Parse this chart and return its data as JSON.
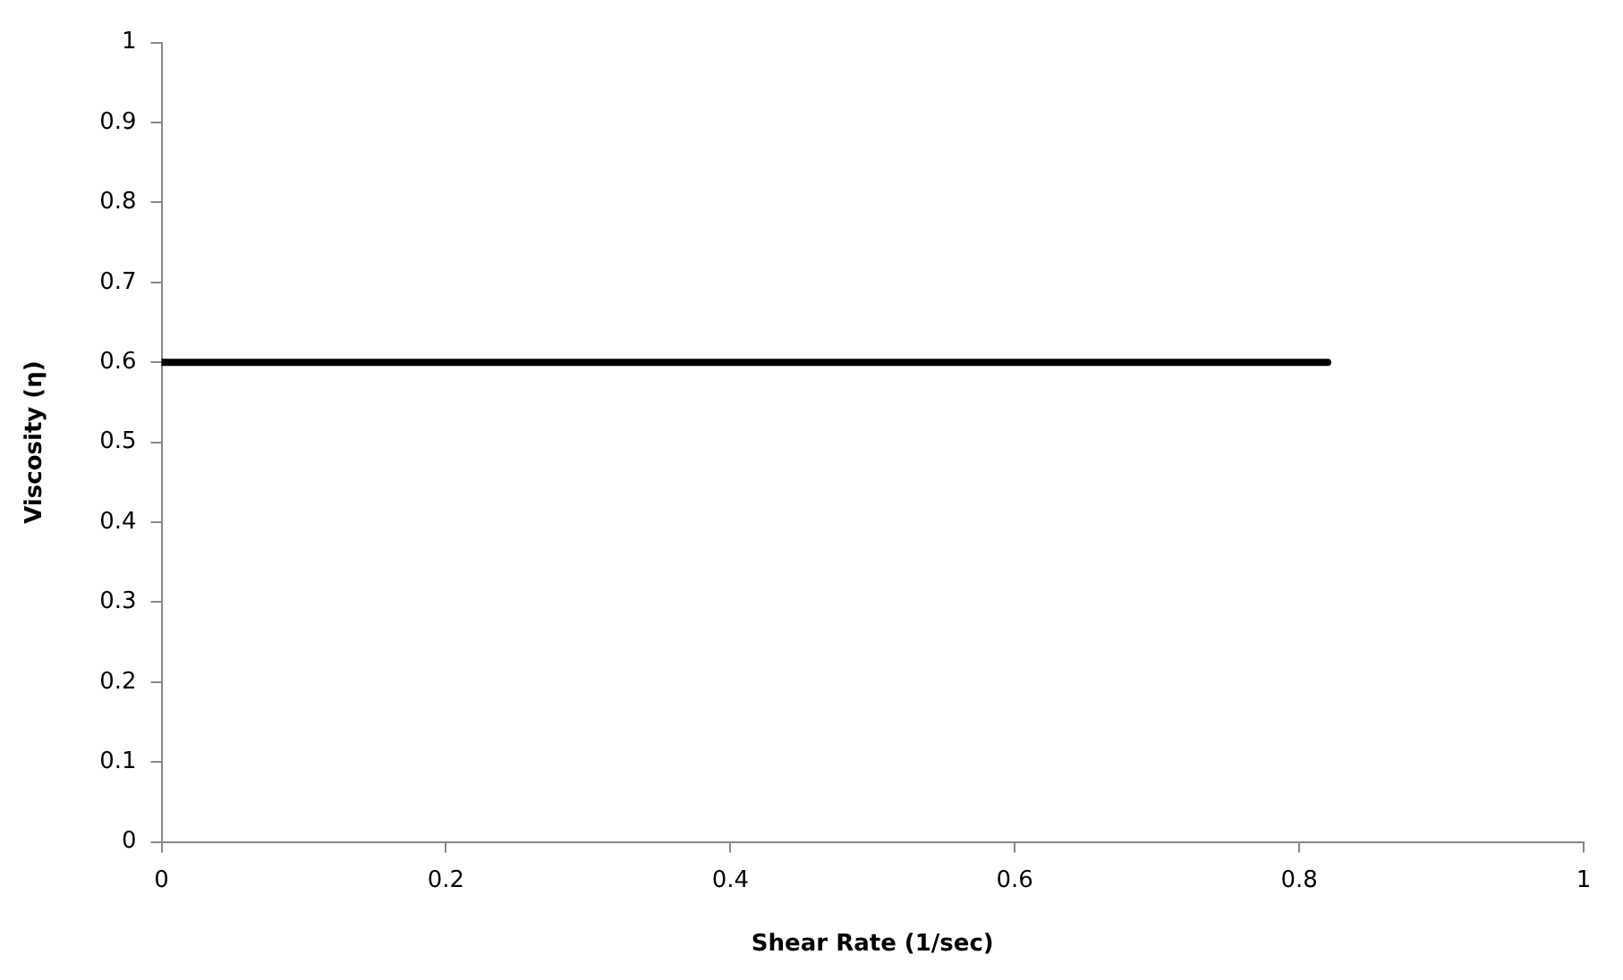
{
  "chart_data": {
    "type": "line",
    "xlabel": "Shear Rate (1/sec)",
    "ylabel": "Viscosity (η)",
    "series": [
      {
        "color": "#000000",
        "x": [
          0,
          0.82
        ],
        "values": [
          0.6,
          0.6
        ]
      }
    ],
    "xlim": [
      0,
      1
    ],
    "xticks": [
      0,
      0.2,
      0.4,
      0.6,
      0.8,
      1
    ],
    "ylim": [
      0,
      1
    ],
    "yticks": [
      0,
      0.1,
      0.2,
      0.3,
      0.4,
      0.5,
      0.6,
      0.7,
      0.8,
      0.9,
      1
    ],
    "grid": false,
    "legend": false,
    "marker": "none",
    "line_style": "solid"
  }
}
